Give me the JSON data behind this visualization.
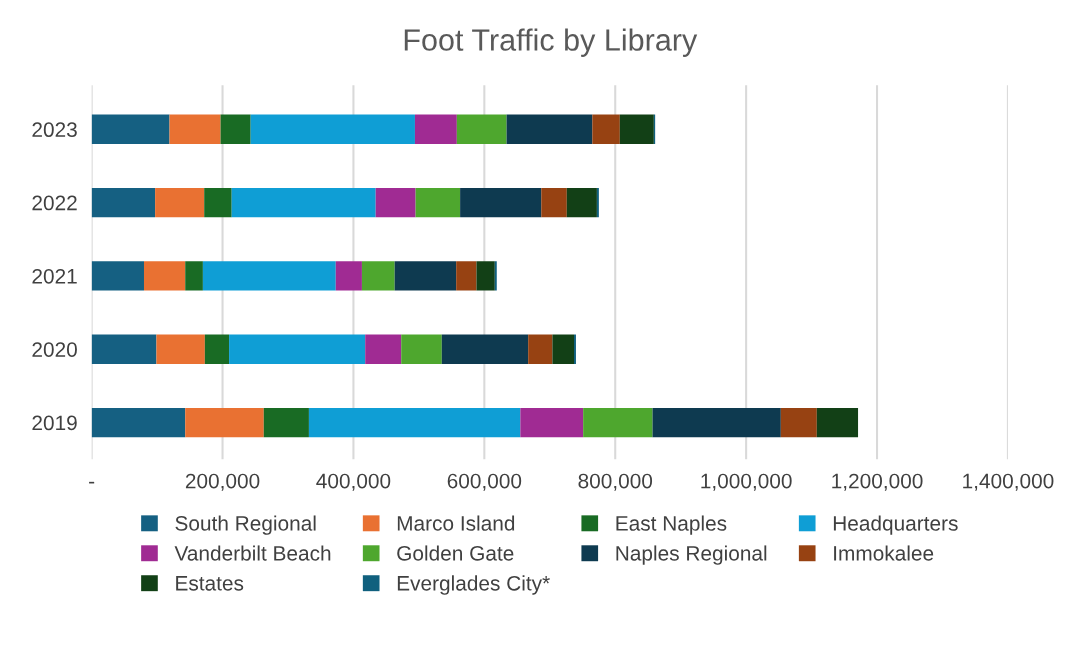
{
  "chart_data": {
    "type": "bar",
    "orientation": "horizontal",
    "stacked": true,
    "title": "Foot Traffic by Library",
    "categories": [
      "2023",
      "2022",
      "2021",
      "2020",
      "2019"
    ],
    "series": [
      {
        "name": "South Regional",
        "color": "#156082",
        "values": [
          119000,
          97000,
          80000,
          99000,
          143000
        ]
      },
      {
        "name": "Marco Island",
        "color": "#e97132",
        "values": [
          78000,
          75000,
          63000,
          74000,
          120000
        ]
      },
      {
        "name": "East Naples",
        "color": "#196b24",
        "values": [
          46000,
          42000,
          27000,
          37000,
          69000
        ]
      },
      {
        "name": "Headquarters",
        "color": "#0f9ed5",
        "values": [
          251000,
          220000,
          203000,
          208000,
          323000
        ]
      },
      {
        "name": "Vanderbilt Beach",
        "color": "#a02b93",
        "values": [
          64000,
          61000,
          40000,
          55000,
          96000
        ]
      },
      {
        "name": "Golden Gate",
        "color": "#4ea72e",
        "values": [
          76000,
          68000,
          50000,
          62000,
          106000
        ]
      },
      {
        "name": "Naples Regional",
        "color": "#0e3a50",
        "values": [
          131000,
          124000,
          94000,
          132000,
          196000
        ]
      },
      {
        "name": "Immokalee",
        "color": "#974212",
        "values": [
          42000,
          39000,
          31000,
          37000,
          55000
        ]
      },
      {
        "name": "Estates",
        "color": "#124016",
        "values": [
          52000,
          46000,
          28000,
          33000,
          63000
        ]
      },
      {
        "name": "Everglades City*",
        "color": "#10607e",
        "values": [
          2000,
          3000,
          3000,
          3000,
          null
        ]
      }
    ],
    "xlim": [
      0,
      1400000
    ],
    "xticks": [
      {
        "value": 0,
        "label": "-"
      },
      {
        "value": 200000,
        "label": "200,000"
      },
      {
        "value": 400000,
        "label": "400,000"
      },
      {
        "value": 600000,
        "label": "600,000"
      },
      {
        "value": 800000,
        "label": "800,000"
      },
      {
        "value": 1000000,
        "label": "1,000,000"
      },
      {
        "value": 1200000,
        "label": "1,200,000"
      },
      {
        "value": 1400000,
        "label": "1,400,000"
      }
    ],
    "grid": "x",
    "legend": "bottom"
  }
}
